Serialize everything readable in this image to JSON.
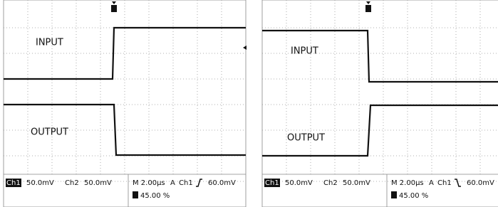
{
  "panels": [
    {
      "input_label": "INPUT",
      "output_label": "OUTPUT",
      "status": {
        "ch1": "Ch1",
        "ch1_scale": "50.0mV",
        "ch2": "Ch2",
        "ch2_scale": "50.0mV",
        "timebase": "M 2.00µs",
        "trigger_mode": "A",
        "trigger_source": "Ch1",
        "trigger_level": "60.0mV",
        "trigger_position": "45.00 %"
      }
    },
    {
      "input_label": "INPUT",
      "output_label": "OUTPUT",
      "status": {
        "ch1": "Ch1",
        "ch1_scale": "50.0mV",
        "ch2": "Ch2",
        "ch2_scale": "50.0mV",
        "timebase": "M 2.00µs",
        "trigger_mode": "A",
        "trigger_source": "Ch1",
        "trigger_level": "60.0mV",
        "trigger_position": "45.00 %"
      }
    }
  ]
}
